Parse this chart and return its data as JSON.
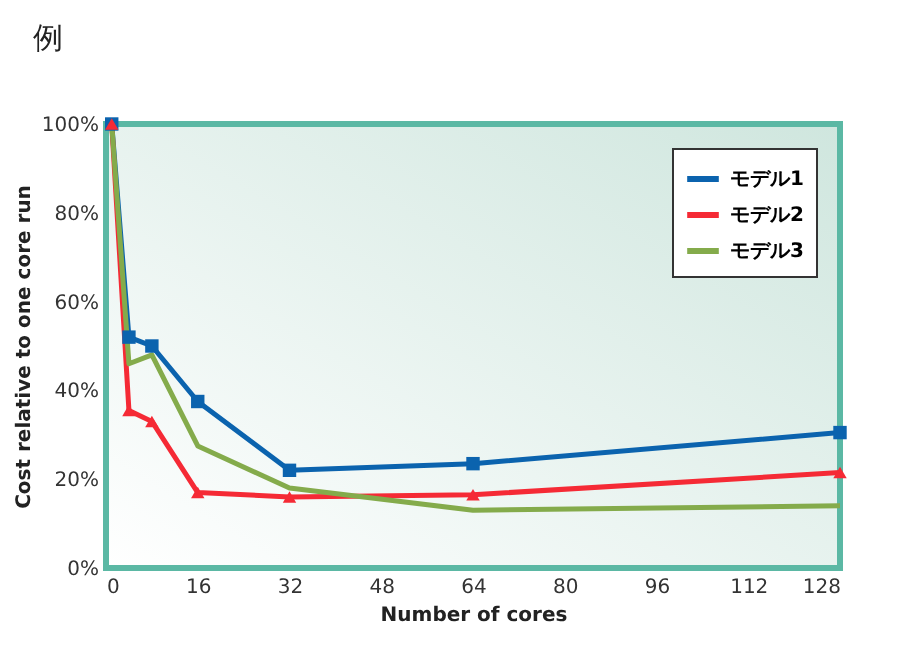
{
  "chart_data": {
    "type": "line",
    "title": "例",
    "xlabel": "Number of cores",
    "ylabel": "Cost relative to one core run",
    "x": [
      1,
      4,
      8,
      16,
      32,
      64,
      128
    ],
    "series": [
      {
        "name": "モデル1",
        "color": "#0b63ae",
        "marker": "square",
        "values": [
          100,
          52,
          50,
          37.5,
          22,
          23.5,
          30.5
        ]
      },
      {
        "name": "モデル2",
        "color": "#f52a35",
        "marker": "triangle",
        "values": [
          100,
          35.5,
          33,
          17,
          16,
          16.5,
          21.5
        ]
      },
      {
        "name": "モデル3",
        "color": "#84ab4b",
        "marker": "none",
        "values": [
          100,
          46,
          48,
          27.5,
          18,
          13,
          14
        ]
      }
    ],
    "xlim": [
      0,
      128
    ],
    "xticks": [
      0,
      16,
      32,
      48,
      64,
      80,
      96,
      112,
      128
    ],
    "ylim": [
      0,
      100
    ],
    "yticks": [
      {
        "value": 0,
        "label": "0%"
      },
      {
        "value": 20,
        "label": "20%"
      },
      {
        "value": 40,
        "label": "40%"
      },
      {
        "value": 60,
        "label": "60%"
      },
      {
        "value": 80,
        "label": "80%"
      },
      {
        "value": 100,
        "label": "100%"
      }
    ],
    "grid": false,
    "legend": "top right",
    "line_style": "solid"
  }
}
